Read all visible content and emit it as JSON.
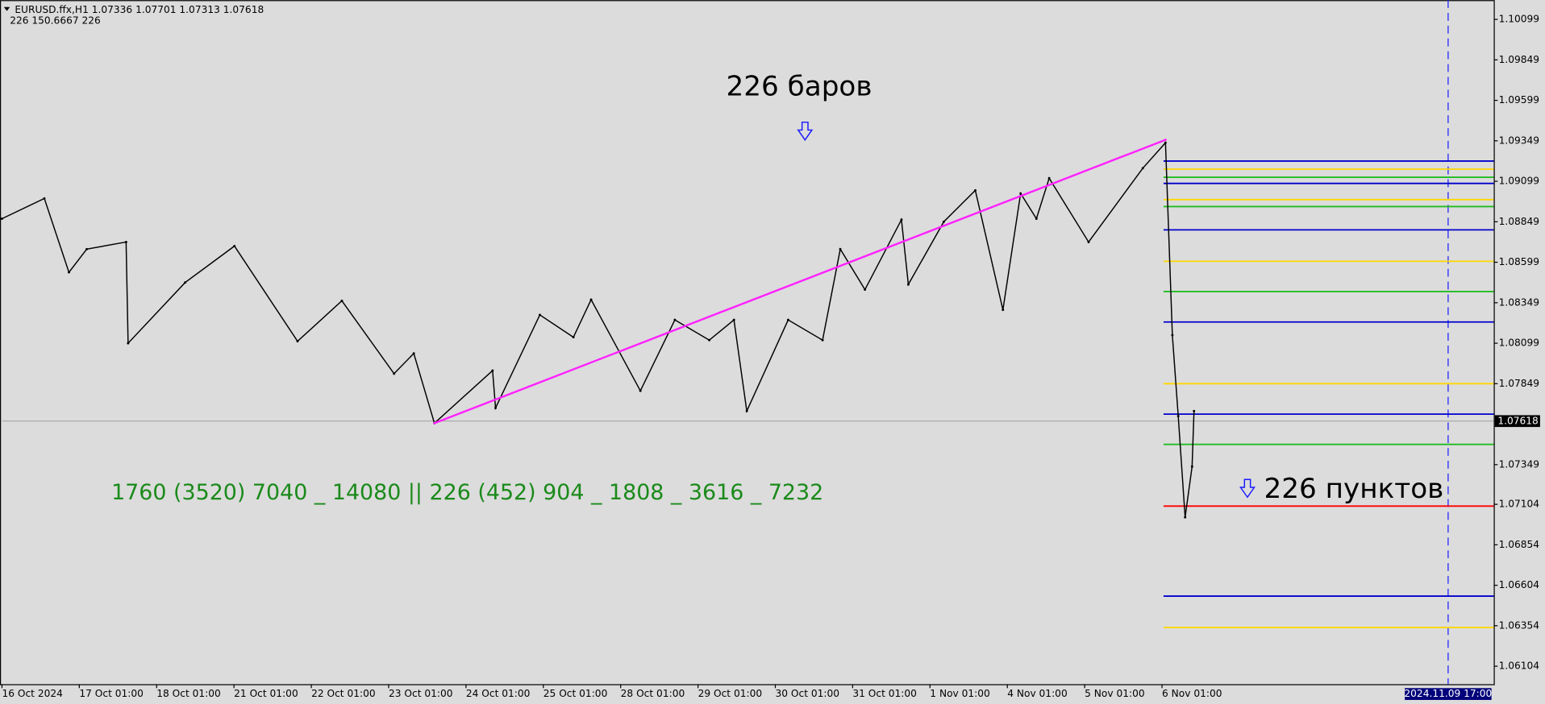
{
  "chart_data": {
    "type": "line",
    "header": "EURUSD.ffx,H1  1.07336 1.07701 1.07313 1.07618",
    "subheader": "226  150.6667  226",
    "annotations": {
      "bars": "226 баров",
      "points": "226 пунктов",
      "sequence": "1760 (3520) 7040 _ 14080 || 226 (452) 904 _ 1808 _ 3616 _ 7232"
    },
    "current_price": 1.07618,
    "time_marker": {
      "value": 18.7,
      "label": "2024.11.09 17:00"
    },
    "xlim": [
      0,
      19.29
    ],
    "ylim": [
      1.05993,
      1.10218
    ],
    "xticks": [
      {
        "value": 0,
        "label": "16 Oct 2024"
      },
      {
        "value": 1,
        "label": "17 Oct 01:00"
      },
      {
        "value": 2,
        "label": "18 Oct 01:00"
      },
      {
        "value": 3,
        "label": "21 Oct 01:00"
      },
      {
        "value": 4,
        "label": "22 Oct 01:00"
      },
      {
        "value": 5,
        "label": "23 Oct 01:00"
      },
      {
        "value": 6,
        "label": "24 Oct 01:00"
      },
      {
        "value": 7,
        "label": "25 Oct 01:00"
      },
      {
        "value": 8,
        "label": "28 Oct 01:00"
      },
      {
        "value": 9,
        "label": "29 Oct 01:00"
      },
      {
        "value": 10,
        "label": "30 Oct 01:00"
      },
      {
        "value": 11,
        "label": "31 Oct 01:00"
      },
      {
        "value": 12,
        "label": "1 Nov 01:00"
      },
      {
        "value": 13,
        "label": "4 Nov 01:00"
      },
      {
        "value": 14,
        "label": "5 Nov 01:00"
      },
      {
        "value": 15,
        "label": "6 Nov 01:00"
      }
    ],
    "yticks": [
      1.10099,
      1.09849,
      1.09599,
      1.09349,
      1.09099,
      1.08849,
      1.08599,
      1.08349,
      1.08099,
      1.07849,
      1.07349,
      1.07104,
      1.06854,
      1.06604,
      1.06354,
      1.06104
    ],
    "series": [
      {
        "color": "#000000",
        "x": [
          0,
          0.548,
          0.866,
          1.096,
          1.605,
          1.631,
          2.369,
          3.006,
          3.822,
          4.395,
          5.07,
          5.325,
          5.592,
          6.344,
          6.382,
          6.955,
          7.389,
          7.618,
          8.255,
          8.701,
          9.146,
          9.465,
          9.631,
          10.166,
          10.611,
          10.84,
          11.159,
          11.631,
          11.72,
          12.178,
          12.586,
          12.943,
          13.172,
          13.376,
          13.541,
          14.051,
          14.752,
          15.045,
          15.134,
          15.21,
          15.299,
          15.389,
          15.414
        ],
        "values": [
          1.08868,
          1.08993,
          1.08537,
          1.0868,
          1.08724,
          1.08099,
          1.08474,
          1.08699,
          1.08111,
          1.08361,
          1.07911,
          1.08036,
          1.07605,
          1.0793,
          1.07699,
          1.08274,
          1.08136,
          1.08368,
          1.07805,
          1.08243,
          1.08118,
          1.08243,
          1.0768,
          1.08243,
          1.08118,
          1.0868,
          1.0843,
          1.08862,
          1.08462,
          1.08849,
          1.09043,
          1.08305,
          1.09024,
          1.08868,
          1.09118,
          1.08724,
          1.0918,
          1.09337,
          1.08149,
          1.07649,
          1.07024,
          1.07337,
          1.0768
        ]
      },
      {
        "color": "#ff22ff",
        "x": [
          5.592,
          15.045
        ],
        "values": [
          1.07605,
          1.09355
        ]
      }
    ],
    "levels_start": 15.02,
    "levels": [
      {
        "value": 1.09224,
        "color": "#0000cc"
      },
      {
        "value": 1.09174,
        "color": "#ffd700"
      },
      {
        "value": 1.09124,
        "color": "#22bb22"
      },
      {
        "value": 1.09086,
        "color": "#0000cc"
      },
      {
        "value": 1.08986,
        "color": "#ffd700"
      },
      {
        "value": 1.08943,
        "color": "#22bb22"
      },
      {
        "value": 1.08799,
        "color": "#0000cc"
      },
      {
        "value": 1.08605,
        "color": "#ffd700"
      },
      {
        "value": 1.08418,
        "color": "#22bb22"
      },
      {
        "value": 1.0823,
        "color": "#0000cc"
      },
      {
        "value": 1.07849,
        "color": "#ffd700"
      },
      {
        "value": 1.07661,
        "color": "#0000cc"
      },
      {
        "value": 1.07474,
        "color": "#22bb22"
      },
      {
        "value": 1.07093,
        "color": "#ff0000"
      },
      {
        "value": 1.06537,
        "color": "#0000cc"
      },
      {
        "value": 1.06343,
        "color": "#ffd700"
      }
    ]
  }
}
